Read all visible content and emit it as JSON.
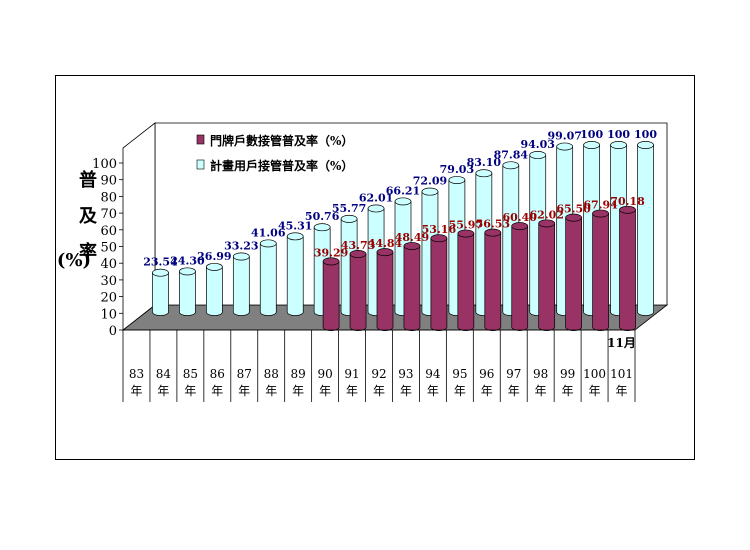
{
  "chart_data": {
    "type": "bar",
    "ylabel": [
      "普",
      "及",
      "率",
      "(%)"
    ],
    "ylim": [
      0,
      100
    ],
    "yticks": [
      0,
      10,
      20,
      30,
      40,
      50,
      60,
      70,
      80,
      90,
      100
    ],
    "categories": [
      [
        "83",
        "年"
      ],
      [
        "84",
        "年"
      ],
      [
        "85",
        "年"
      ],
      [
        "86",
        "年"
      ],
      [
        "87",
        "年"
      ],
      [
        "88",
        "年"
      ],
      [
        "89",
        "年"
      ],
      [
        "90",
        "年"
      ],
      [
        "91",
        "年"
      ],
      [
        "92",
        "年"
      ],
      [
        "93",
        "年"
      ],
      [
        "94",
        "年"
      ],
      [
        "95",
        "年"
      ],
      [
        "96",
        "年"
      ],
      [
        "97",
        "年"
      ],
      [
        "98",
        "年"
      ],
      [
        "99",
        "年"
      ],
      [
        "100",
        "年"
      ],
      [
        "101",
        "年"
      ]
    ],
    "annotation": "11月",
    "series": [
      {
        "name": "門牌戶數接管普及率（%）",
        "color": "#993366",
        "label_color": "#990000",
        "values": [
          null,
          null,
          null,
          null,
          null,
          null,
          null,
          39.29,
          43.73,
          44.84,
          48.49,
          53.16,
          55.97,
          56.53,
          60.4,
          62.02,
          65.5,
          67.94,
          70.18
        ],
        "labels": [
          "",
          "",
          "",
          "",
          "",
          "",
          "",
          "39.29",
          "43.73",
          "44.84",
          "48.49",
          "53.16",
          "55.97",
          "56.53",
          "60.40",
          "62.02",
          "65.50",
          "67.94",
          "70.18"
        ]
      },
      {
        "name": "計畫用戶接管普及率（%）",
        "color": "#ccffff",
        "label_color": "#000080",
        "values": [
          23.54,
          24.3,
          26.99,
          33.23,
          41.06,
          45.31,
          50.76,
          55.77,
          62.01,
          66.21,
          72.09,
          79.03,
          83.1,
          87.84,
          94.03,
          99.07,
          100,
          100,
          100
        ],
        "labels": [
          "23.54",
          "24.30",
          "26.99",
          "33.23",
          "41.06",
          "45.31",
          "50.76",
          "55.77",
          "62.01",
          "66.21",
          "72.09",
          "79.03",
          "83.10",
          "87.84",
          "94.03",
          "99.07",
          "100",
          "100",
          "100"
        ]
      }
    ],
    "legend_position": "top-left",
    "grid": false
  }
}
